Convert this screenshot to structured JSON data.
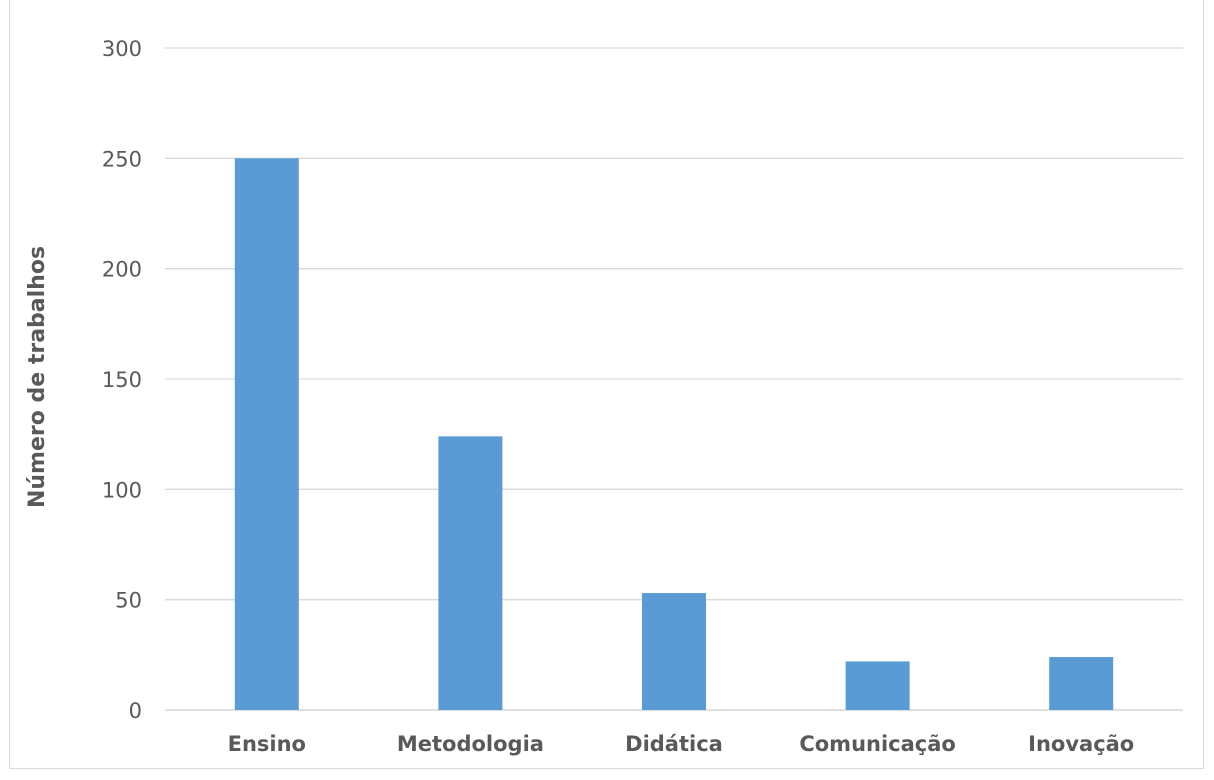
{
  "chart_data": {
    "type": "bar",
    "title": "",
    "xlabel": "",
    "ylabel": "Número de trabalhos",
    "categories": [
      "Ensino",
      "Metodologia",
      "Didática",
      "Comunicação",
      "Inovação"
    ],
    "values": [
      250,
      124,
      53,
      22,
      24
    ],
    "ylim": [
      0,
      300
    ],
    "yticks": [
      0,
      50,
      100,
      150,
      200,
      250,
      300
    ],
    "grid": true,
    "legend": "none",
    "colors": {
      "bar": "#5b9bd5",
      "grid": "#d9d9d9",
      "text": "#595959"
    }
  }
}
